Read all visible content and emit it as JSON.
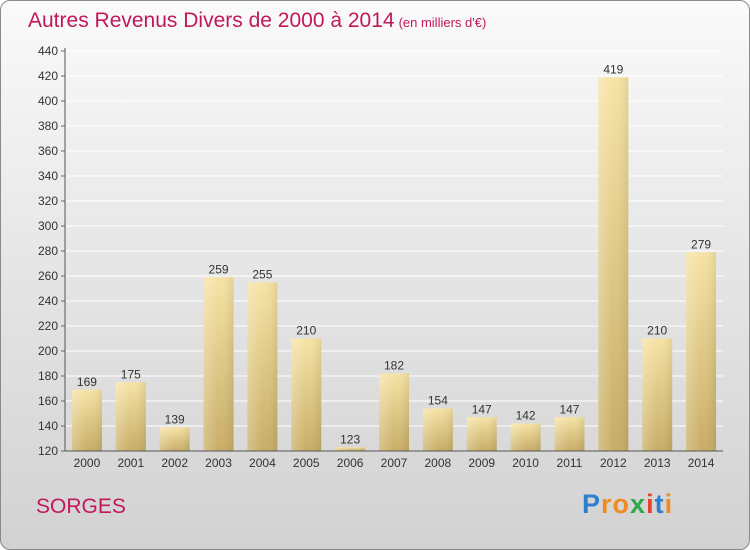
{
  "header": {
    "title": "Autres Revenus Divers de 2000 à 2014",
    "subtitle": "(en milliers d'€)"
  },
  "footer": {
    "commune": "SORGES",
    "logo_letters": [
      "P",
      "r",
      "o",
      "x",
      "i",
      "t",
      "i"
    ],
    "logo_colors": [
      "#2e7fd0",
      "#f18b1e",
      "#f18b1e",
      "#2ea84a",
      "#e6402f",
      "#2e7fd0",
      "#f18b1e"
    ]
  },
  "chart_data": {
    "type": "bar",
    "title": "Autres Revenus Divers de 2000 à 2014",
    "subtitle": "(en milliers d'€)",
    "xlabel": "",
    "ylabel": "",
    "categories": [
      "2000",
      "2001",
      "2002",
      "2003",
      "2004",
      "2005",
      "2006",
      "2007",
      "2008",
      "2009",
      "2010",
      "2011",
      "2012",
      "2013",
      "2014"
    ],
    "values": [
      169,
      175,
      139,
      259,
      255,
      210,
      123,
      182,
      154,
      147,
      142,
      147,
      419,
      210,
      279
    ],
    "ylim": [
      120,
      440
    ],
    "yticks": [
      120,
      140,
      160,
      180,
      200,
      220,
      240,
      260,
      280,
      300,
      320,
      340,
      360,
      380,
      400,
      420,
      440
    ],
    "grid": true,
    "bar_color": "#e8d08a"
  }
}
